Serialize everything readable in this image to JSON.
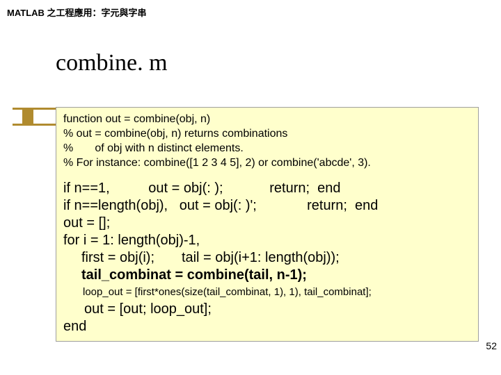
{
  "header": "MATLAB 之工程應用：字元與字串",
  "title": "combine. m",
  "code": {
    "c1": "function out = combine(obj, n)",
    "c2": "% out = combine(obj, n) returns combinations",
    "c3": "%       of obj with n distinct elements.",
    "c4": "% For instance: combine([1 2 3 4 5], 2) or combine('abcde', 3).",
    "b1": "if n==1,          out = obj(: );            return;  end",
    "b2": "if n==length(obj),   out = obj(: )';             return;  end",
    "b3": "out = [];",
    "b4": "for i = 1: length(obj)-1,",
    "b5a": "first = obj(i);",
    "b5b": "tail = obj(i+1: length(obj));",
    "b6": "tail_combinat = combine(tail, n-1);",
    "s1": "loop_out = [first*ones(size(tail_combinat, 1), 1), tail_combinat];",
    "t1": "out = [out; loop_out];",
    "t2": "end"
  },
  "page": "52",
  "colors": {
    "accent": "#b08b2f",
    "boxbg": "#ffffcc",
    "boxborder": "#9e9e9e"
  }
}
